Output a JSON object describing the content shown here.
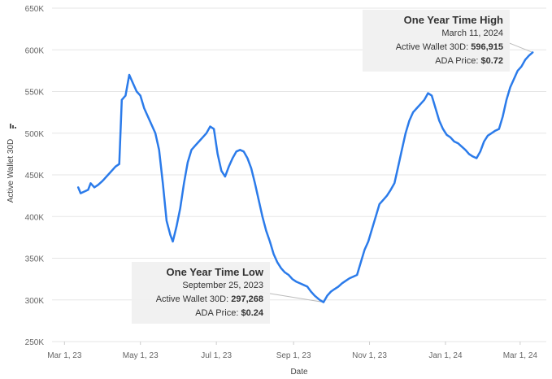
{
  "chart_data": {
    "type": "line",
    "title": "",
    "xlabel": "Date",
    "ylabel": "Active Wallet 30D",
    "ylabel_icon": "sort-desc-icon",
    "ylim": [
      250000,
      650000
    ],
    "yticks": [
      250000,
      300000,
      350000,
      400000,
      450000,
      500000,
      550000,
      600000,
      650000
    ],
    "ytick_labels": [
      "250K",
      "300K",
      "350K",
      "400K",
      "450K",
      "500K",
      "550K",
      "600K",
      "650K"
    ],
    "xlim": [
      "2023-02-19",
      "2024-03-22"
    ],
    "xticks": [
      "2023-03-01",
      "2023-05-01",
      "2023-07-01",
      "2023-09-01",
      "2023-11-01",
      "2024-01-01",
      "2024-03-01"
    ],
    "xtick_labels": [
      "Mar 1, 23",
      "May 1, 23",
      "Jul 1, 23",
      "Sep 1, 23",
      "Nov 1, 23",
      "Jan 1, 24",
      "Mar 1, 24"
    ],
    "grid": true,
    "line_color": "#2b7bea",
    "series": [
      {
        "points": [
          [
            "2023-03-12",
            435000
          ],
          [
            "2023-03-14",
            428000
          ],
          [
            "2023-03-17",
            430000
          ],
          [
            "2023-03-20",
            432000
          ],
          [
            "2023-03-22",
            440000
          ],
          [
            "2023-03-25",
            435000
          ],
          [
            "2023-03-28",
            438000
          ],
          [
            "2023-03-31",
            442000
          ],
          [
            "2023-04-02",
            445000
          ],
          [
            "2023-04-05",
            450000
          ],
          [
            "2023-04-08",
            455000
          ],
          [
            "2023-04-11",
            460000
          ],
          [
            "2023-04-14",
            463000
          ],
          [
            "2023-04-16",
            540000
          ],
          [
            "2023-04-19",
            545000
          ],
          [
            "2023-04-22",
            570000
          ],
          [
            "2023-04-25",
            560000
          ],
          [
            "2023-04-28",
            550000
          ],
          [
            "2023-05-01",
            545000
          ],
          [
            "2023-05-04",
            530000
          ],
          [
            "2023-05-07",
            520000
          ],
          [
            "2023-05-10",
            510000
          ],
          [
            "2023-05-13",
            500000
          ],
          [
            "2023-05-16",
            480000
          ],
          [
            "2023-05-19",
            440000
          ],
          [
            "2023-05-22",
            395000
          ],
          [
            "2023-05-25",
            378000
          ],
          [
            "2023-05-27",
            370000
          ],
          [
            "2023-05-30",
            388000
          ],
          [
            "2023-06-02",
            410000
          ],
          [
            "2023-06-05",
            440000
          ],
          [
            "2023-06-08",
            465000
          ],
          [
            "2023-06-11",
            480000
          ],
          [
            "2023-06-14",
            485000
          ],
          [
            "2023-06-17",
            490000
          ],
          [
            "2023-06-20",
            495000
          ],
          [
            "2023-06-23",
            500000
          ],
          [
            "2023-06-26",
            508000
          ],
          [
            "2023-06-29",
            505000
          ],
          [
            "2023-07-02",
            475000
          ],
          [
            "2023-07-05",
            455000
          ],
          [
            "2023-07-08",
            448000
          ],
          [
            "2023-07-11",
            460000
          ],
          [
            "2023-07-14",
            470000
          ],
          [
            "2023-07-17",
            478000
          ],
          [
            "2023-07-20",
            480000
          ],
          [
            "2023-07-23",
            478000
          ],
          [
            "2023-07-26",
            470000
          ],
          [
            "2023-07-29",
            458000
          ],
          [
            "2023-08-01",
            440000
          ],
          [
            "2023-08-04",
            420000
          ],
          [
            "2023-08-07",
            400000
          ],
          [
            "2023-08-10",
            383000
          ],
          [
            "2023-08-13",
            370000
          ],
          [
            "2023-08-16",
            355000
          ],
          [
            "2023-08-19",
            345000
          ],
          [
            "2023-08-22",
            338000
          ],
          [
            "2023-08-25",
            333000
          ],
          [
            "2023-08-28",
            330000
          ],
          [
            "2023-08-31",
            325000
          ],
          [
            "2023-09-03",
            322000
          ],
          [
            "2023-09-06",
            320000
          ],
          [
            "2023-09-09",
            318000
          ],
          [
            "2023-09-12",
            316000
          ],
          [
            "2023-09-15",
            310000
          ],
          [
            "2023-09-18",
            305000
          ],
          [
            "2023-09-22",
            300000
          ],
          [
            "2023-09-25",
            297268
          ],
          [
            "2023-09-28",
            305000
          ],
          [
            "2023-10-01",
            310000
          ],
          [
            "2023-10-04",
            313000
          ],
          [
            "2023-10-07",
            316000
          ],
          [
            "2023-10-10",
            320000
          ],
          [
            "2023-10-13",
            323000
          ],
          [
            "2023-10-16",
            326000
          ],
          [
            "2023-10-19",
            328000
          ],
          [
            "2023-10-22",
            330000
          ],
          [
            "2023-10-25",
            345000
          ],
          [
            "2023-10-28",
            360000
          ],
          [
            "2023-10-31",
            370000
          ],
          [
            "2023-11-03",
            385000
          ],
          [
            "2023-11-06",
            400000
          ],
          [
            "2023-11-09",
            415000
          ],
          [
            "2023-11-12",
            420000
          ],
          [
            "2023-11-15",
            425000
          ],
          [
            "2023-11-18",
            432000
          ],
          [
            "2023-11-21",
            440000
          ],
          [
            "2023-11-24",
            460000
          ],
          [
            "2023-11-27",
            480000
          ],
          [
            "2023-11-30",
            500000
          ],
          [
            "2023-12-03",
            515000
          ],
          [
            "2023-12-06",
            525000
          ],
          [
            "2023-12-09",
            530000
          ],
          [
            "2023-12-12",
            535000
          ],
          [
            "2023-12-15",
            540000
          ],
          [
            "2023-12-18",
            548000
          ],
          [
            "2023-12-21",
            545000
          ],
          [
            "2023-12-24",
            530000
          ],
          [
            "2023-12-27",
            515000
          ],
          [
            "2023-12-30",
            505000
          ],
          [
            "2024-01-02",
            498000
          ],
          [
            "2024-01-05",
            495000
          ],
          [
            "2024-01-08",
            490000
          ],
          [
            "2024-01-11",
            488000
          ],
          [
            "2024-01-14",
            484000
          ],
          [
            "2024-01-17",
            480000
          ],
          [
            "2024-01-20",
            475000
          ],
          [
            "2024-01-23",
            472000
          ],
          [
            "2024-01-26",
            470000
          ],
          [
            "2024-01-29",
            478000
          ],
          [
            "2024-02-01",
            490000
          ],
          [
            "2024-02-04",
            497000
          ],
          [
            "2024-02-07",
            500000
          ],
          [
            "2024-02-10",
            503000
          ],
          [
            "2024-02-13",
            505000
          ],
          [
            "2024-02-16",
            520000
          ],
          [
            "2024-02-19",
            540000
          ],
          [
            "2024-02-22",
            555000
          ],
          [
            "2024-02-25",
            565000
          ],
          [
            "2024-02-28",
            575000
          ],
          [
            "2024-03-02",
            580000
          ],
          [
            "2024-03-05",
            588000
          ],
          [
            "2024-03-08",
            593000
          ],
          [
            "2024-03-11",
            596915
          ]
        ]
      }
    ],
    "annotations": [
      {
        "id": "high",
        "title": "One Year Time High",
        "date_text": "March 11, 2024",
        "wallet_label": "Active Wallet 30D:",
        "wallet_value": "596,915",
        "price_label": "ADA Price:",
        "price_value": "$0.72",
        "anchor": [
          "2024-03-11",
          596915
        ]
      },
      {
        "id": "low",
        "title": "One Year Time Low",
        "date_text": "September 25, 2023",
        "wallet_label": "Active Wallet 30D:",
        "wallet_value": "297,268",
        "price_label": "ADA Price:",
        "price_value": "$0.24",
        "anchor": [
          "2023-09-25",
          297268
        ]
      }
    ]
  }
}
